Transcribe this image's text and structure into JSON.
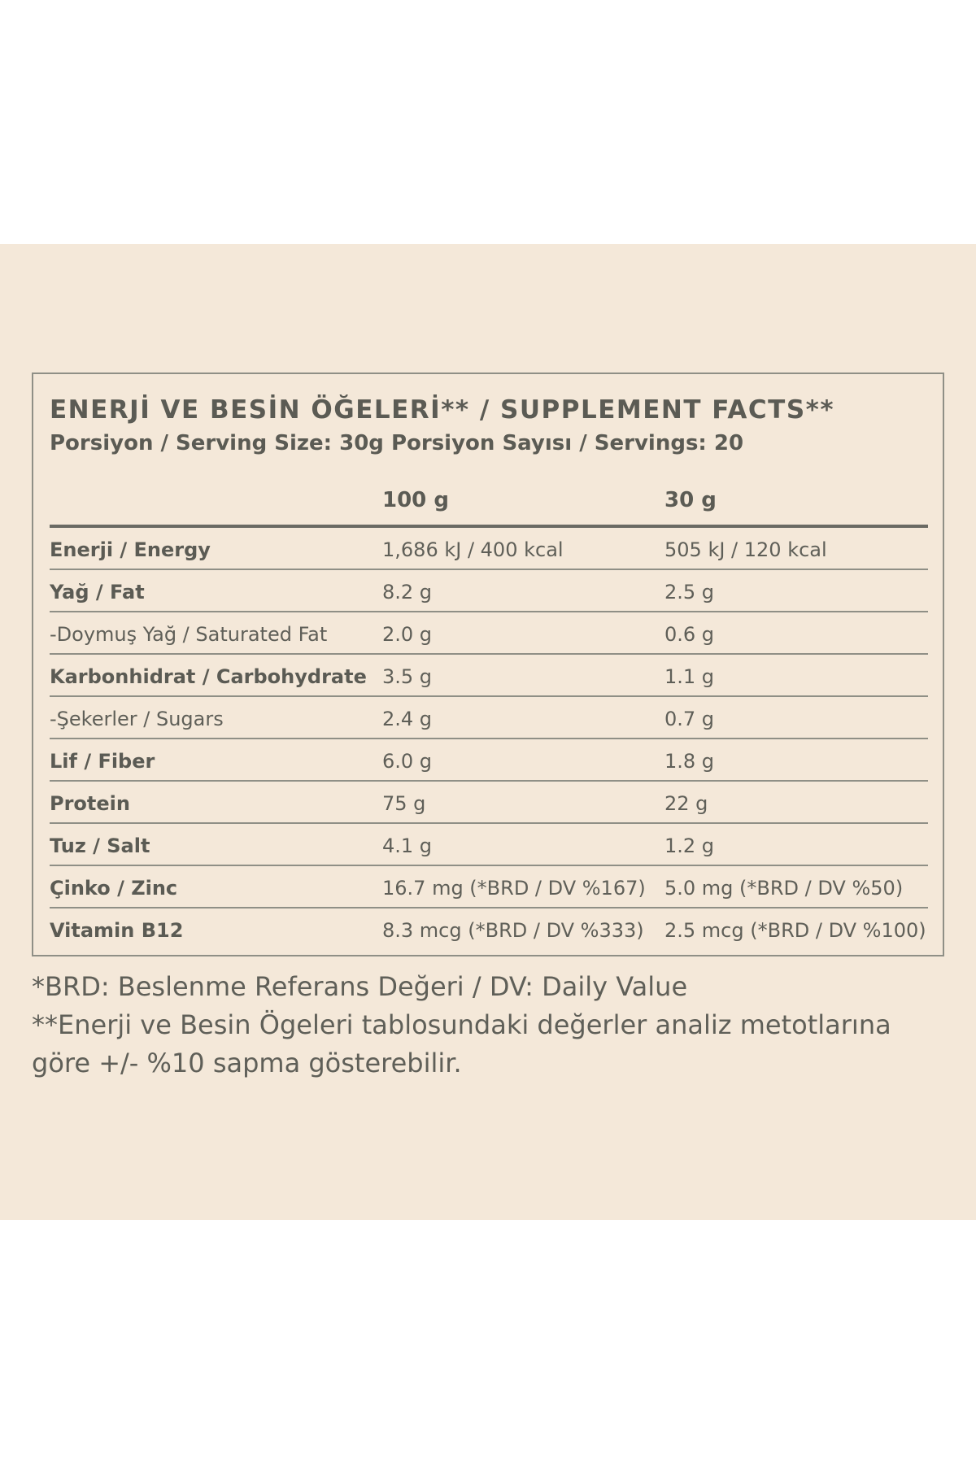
{
  "table": {
    "title": "ENERJİ VE BESİN ÖĞELERİ** / SUPPLEMENT FACTS**",
    "serving": "Porsiyon / Serving Size: 30g Porsiyon Sayısı / Servings: 20",
    "columns": [
      "100 g",
      "30 g"
    ],
    "rows": [
      {
        "name": "Enerji / Energy",
        "per100": "1,686 kJ / 400 kcal",
        "perServing": "505 kJ / 120 kcal",
        "bold": true
      },
      {
        "name": "Yağ / Fat",
        "per100": "8.2 g",
        "perServing": "2.5 g",
        "bold": true
      },
      {
        "name": "-Doymuş Yağ / Saturated Fat",
        "per100": "2.0 g",
        "perServing": "0.6 g",
        "bold": false
      },
      {
        "name": "Karbonhidrat / Carbohydrate",
        "per100": "3.5 g",
        "perServing": "1.1 g",
        "bold": true
      },
      {
        "name": "-Şekerler / Sugars",
        "per100": "2.4 g",
        "perServing": "0.7 g",
        "bold": false
      },
      {
        "name": "Lif / Fiber",
        "per100": "6.0 g",
        "perServing": "1.8 g",
        "bold": true
      },
      {
        "name": "Protein",
        "per100": "75  g",
        "perServing": "22  g",
        "bold": true
      },
      {
        "name": "Tuz / Salt",
        "per100": "4.1 g",
        "perServing": "1.2 g",
        "bold": true
      },
      {
        "name": "Çinko / Zinc",
        "per100": "16.7 mg (*BRD / DV %167)",
        "perServing": "5.0 mg (*BRD / DV %50)",
        "bold": true
      },
      {
        "name": "Vitamin B12",
        "per100": "8.3 mcg (*BRD / DV %333)",
        "perServing": "2.5 mcg (*BRD / DV %100)",
        "bold": true
      }
    ]
  },
  "footnotes": {
    "brd": "*BRD: Beslenme Referans Değeri / DV: Daily Value",
    "deviation": "**Enerji ve Besin Ögeleri tablosundaki değerler analiz metotlarına göre +/- %10 sapma gösterebilir."
  },
  "colors": {
    "background": "#f4e8d9",
    "text": "#5f5f58",
    "rule": "#8f8f86"
  }
}
